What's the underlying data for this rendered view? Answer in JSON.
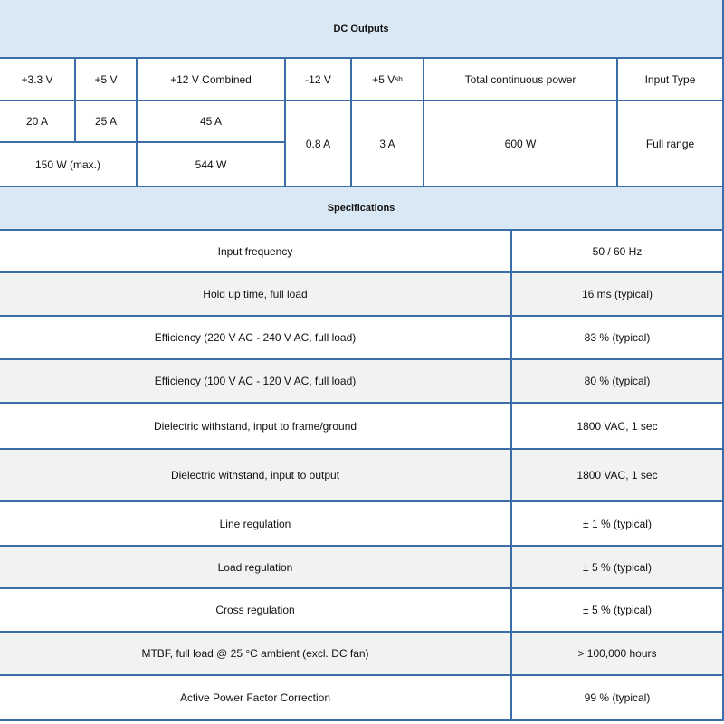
{
  "header": {
    "title": "DC Outputs"
  },
  "outputs": {
    "columns": [
      "+3.3 V",
      "+5 V",
      "+12 V Combined",
      "-12 V",
      {
        "text": "+5 V",
        "sub": "sb"
      },
      "Total continuous power",
      "Input Type"
    ],
    "currents": [
      "20 A",
      "25 A",
      "45 A",
      "0.8 A",
      "3 A",
      "600 W",
      "Full range"
    ],
    "power": [
      "150 W (max.)",
      "544 W"
    ]
  },
  "specifications": {
    "title": "Specifications",
    "rows": [
      [
        "Input frequency",
        "50 / 60 Hz"
      ],
      [
        "Hold up time, full load",
        "16 ms (typical)"
      ],
      [
        "Efficiency (220 V AC - 240 V AC, full load)",
        "83 % (typical)"
      ],
      [
        "Efficiency (100 V AC - 120 V AC, full load)",
        "80 % (typical)"
      ],
      [
        "Dielectric withstand, input to frame/ground",
        "1800 VAC, 1 sec"
      ],
      [
        "Dielectric withstand, input to output",
        "1800 VAC, 1 sec"
      ],
      [
        "Line regulation",
        "± 1 % (typical)"
      ],
      [
        "Load regulation",
        "± 5 % (typical)"
      ],
      [
        "Cross regulation",
        "± 5 % (typical)"
      ],
      [
        "MTBF, full load @ 25 °C ambient (excl. DC fan)",
        "> 100,000 hours"
      ],
      [
        "Active Power Factor Correction",
        "99 % (typical)"
      ]
    ]
  }
}
